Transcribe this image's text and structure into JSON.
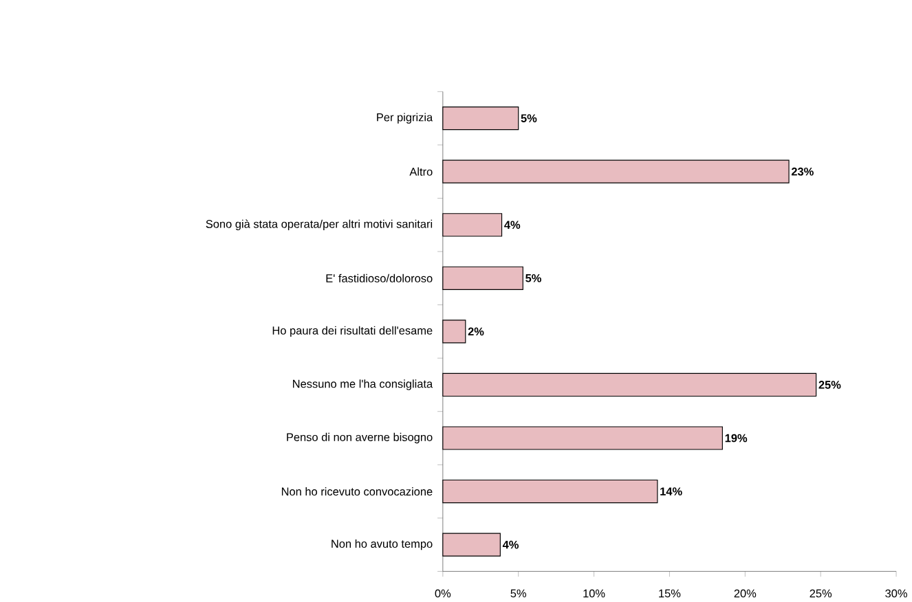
{
  "chart_data": {
    "type": "bar",
    "orientation": "horizontal",
    "categories": [
      "Per pigrizia",
      "Altro",
      "Sono già stata operata/per altri motivi sanitari",
      "E' fastidioso/doloroso",
      "Ho paura dei risultati dell'esame",
      "Nessuno me l'ha consigliata",
      "Penso di non averne bisogno",
      "Non ho ricevuto convocazione",
      "Non ho avuto tempo"
    ],
    "values": [
      5.0,
      22.9,
      3.9,
      5.3,
      1.5,
      24.7,
      18.5,
      14.2,
      3.8
    ],
    "value_labels": [
      "5%",
      "23%",
      "4%",
      "5%",
      "2%",
      "25%",
      "19%",
      "14%",
      "4%"
    ],
    "color": "#e8bcc0",
    "xlim": [
      0,
      30
    ],
    "xticks": [
      {
        "value": 0,
        "label": "0%"
      },
      {
        "value": 5,
        "label": "5%"
      },
      {
        "value": 10,
        "label": "10%"
      },
      {
        "value": 15,
        "label": "15%"
      },
      {
        "value": 20,
        "label": "20%"
      },
      {
        "value": 25,
        "label": "25%"
      },
      {
        "value": 30,
        "label": "30%"
      }
    ],
    "grid": false
  }
}
